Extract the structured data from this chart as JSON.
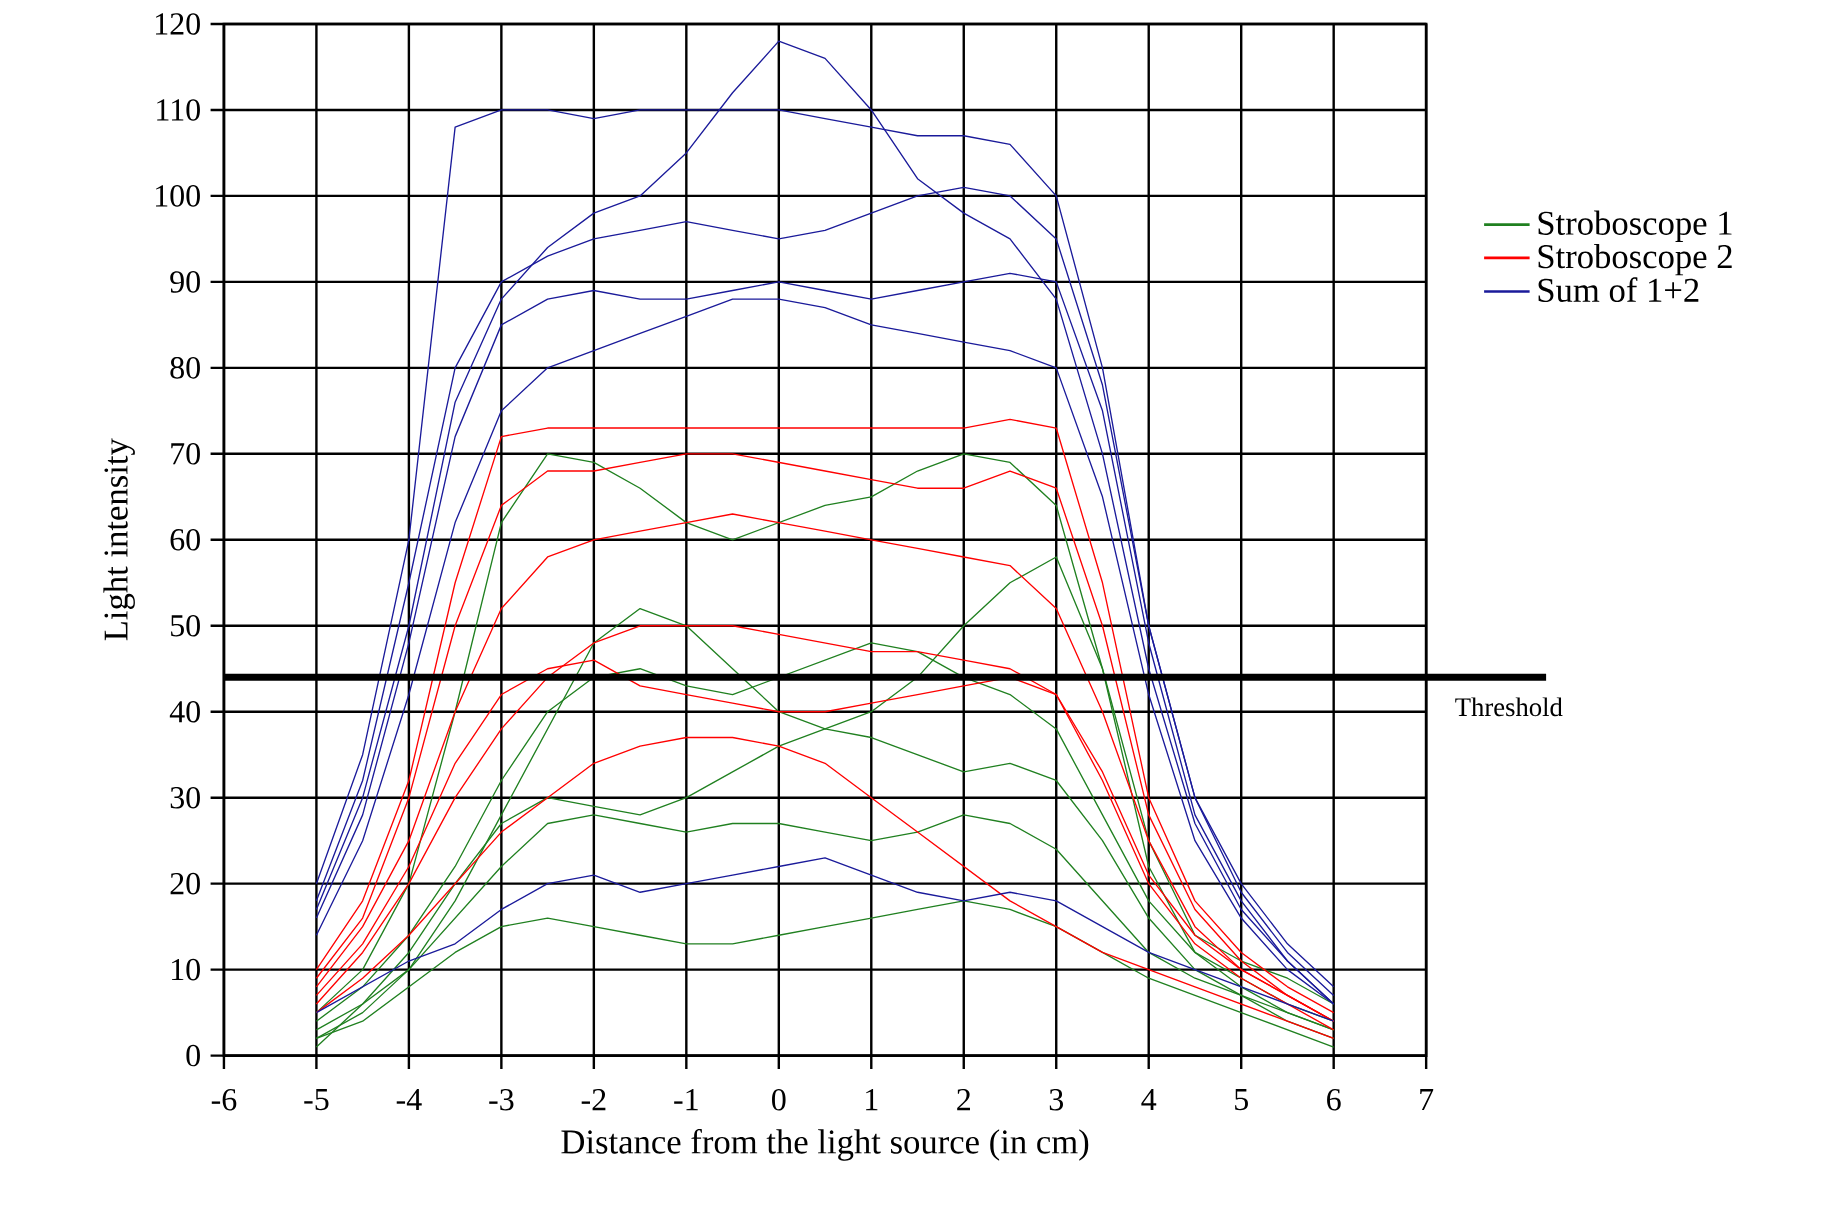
{
  "chart_data": {
    "type": "line",
    "xlabel": "Distance from the light source (in cm)",
    "ylabel": "Light intensity",
    "x": [
      -5,
      -4.5,
      -4,
      -3.5,
      -3,
      -2.5,
      -2,
      -1.5,
      -1,
      -0.5,
      0,
      0.5,
      1,
      1.5,
      2,
      2.5,
      3,
      3.5,
      4,
      4.5,
      5,
      5.5,
      6
    ],
    "xlim": [
      -6,
      7
    ],
    "xticks": [
      -6,
      -5,
      -4,
      -3,
      -2,
      -1,
      0,
      1,
      2,
      3,
      4,
      5,
      6,
      7
    ],
    "ylim": [
      0,
      120
    ],
    "yticks": [
      0,
      10,
      20,
      30,
      40,
      50,
      60,
      70,
      80,
      90,
      100,
      110,
      120
    ],
    "grid": true,
    "legend": "right",
    "ref_lines": [
      {
        "axis": "y",
        "value": 44,
        "label": "Threshold",
        "color": "#000000"
      }
    ],
    "series": [
      {
        "name": "Stroboscope 1",
        "color": "#208020",
        "values": [
          2,
          4,
          8,
          12,
          15,
          16,
          15,
          14,
          13,
          13,
          14,
          15,
          16,
          17,
          18,
          17,
          15,
          12,
          9,
          7,
          5,
          3,
          1
        ]
      },
      {
        "color": "#208020",
        "values": [
          3,
          6,
          10,
          16,
          22,
          27,
          28,
          27,
          26,
          27,
          27,
          26,
          25,
          26,
          28,
          27,
          24,
          18,
          12,
          9,
          7,
          5,
          3
        ]
      },
      {
        "color": "#208020",
        "values": [
          4,
          8,
          14,
          22,
          32,
          40,
          44,
          45,
          43,
          42,
          44,
          46,
          48,
          47,
          44,
          42,
          38,
          28,
          18,
          12,
          9,
          6,
          4
        ]
      },
      {
        "color": "#208020",
        "values": [
          5,
          10,
          20,
          40,
          62,
          70,
          69,
          66,
          62,
          60,
          62,
          64,
          65,
          68,
          70,
          69,
          64,
          45,
          25,
          14,
          11,
          9,
          6
        ]
      },
      {
        "color": "#208020",
        "values": [
          1,
          6,
          12,
          20,
          27,
          30,
          29,
          28,
          30,
          33,
          36,
          38,
          37,
          35,
          33,
          34,
          32,
          25,
          16,
          10,
          7,
          4,
          2
        ]
      },
      {
        "color": "#208020",
        "values": [
          2,
          5,
          10,
          18,
          28,
          38,
          48,
          52,
          50,
          45,
          40,
          38,
          40,
          44,
          50,
          55,
          58,
          45,
          22,
          12,
          8,
          5,
          3
        ]
      },
      {
        "name": "Stroboscope 2",
        "color": "#ff0000",
        "values": [
          10,
          18,
          32,
          55,
          72,
          73,
          73,
          73,
          73,
          73,
          73,
          73,
          73,
          73,
          73,
          74,
          73,
          55,
          30,
          18,
          12,
          8,
          5
        ]
      },
      {
        "color": "#ff0000",
        "values": [
          8,
          15,
          25,
          40,
          52,
          58,
          60,
          61,
          62,
          63,
          62,
          61,
          60,
          59,
          58,
          57,
          52,
          40,
          25,
          15,
          10,
          7,
          4
        ]
      },
      {
        "color": "#ff0000",
        "values": [
          6,
          12,
          20,
          30,
          38,
          44,
          48,
          50,
          50,
          50,
          49,
          48,
          47,
          47,
          46,
          45,
          42,
          32,
          20,
          13,
          9,
          6,
          3
        ]
      },
      {
        "color": "#ff0000",
        "values": [
          5,
          9,
          14,
          20,
          26,
          30,
          34,
          36,
          37,
          37,
          36,
          34,
          30,
          26,
          22,
          18,
          15,
          12,
          10,
          8,
          6,
          4,
          2
        ]
      },
      {
        "color": "#ff0000",
        "values": [
          7,
          13,
          22,
          34,
          42,
          45,
          46,
          43,
          42,
          41,
          40,
          40,
          41,
          42,
          43,
          44,
          42,
          33,
          21,
          14,
          10,
          7,
          4
        ]
      },
      {
        "color": "#ff0000",
        "values": [
          9,
          16,
          30,
          50,
          64,
          68,
          68,
          69,
          70,
          70,
          69,
          68,
          67,
          66,
          66,
          68,
          66,
          50,
          28,
          17,
          11,
          7,
          4
        ]
      },
      {
        "name": "Sum of 1+2",
        "color": "#1a1a9a",
        "values": [
          20,
          35,
          60,
          108,
          110,
          110,
          109,
          110,
          110,
          110,
          110,
          109,
          108,
          107,
          107,
          106,
          100,
          80,
          50,
          30,
          20,
          13,
          8
        ]
      },
      {
        "color": "#1a1a9a",
        "values": [
          18,
          32,
          55,
          80,
          90,
          93,
          95,
          96,
          97,
          96,
          95,
          96,
          98,
          100,
          101,
          100,
          95,
          78,
          50,
          30,
          19,
          12,
          7
        ]
      },
      {
        "color": "#1a1a9a",
        "values": [
          16,
          28,
          48,
          72,
          85,
          88,
          89,
          88,
          88,
          89,
          90,
          89,
          88,
          89,
          90,
          91,
          90,
          75,
          48,
          28,
          18,
          11,
          6
        ]
      },
      {
        "color": "#1a1a9a",
        "values": [
          14,
          25,
          42,
          62,
          75,
          80,
          82,
          84,
          86,
          88,
          88,
          87,
          85,
          84,
          83,
          82,
          80,
          65,
          42,
          25,
          16,
          10,
          6
        ]
      },
      {
        "color": "#1a1a9a",
        "values": [
          5,
          8,
          11,
          13,
          17,
          20,
          21,
          19,
          20,
          21,
          22,
          23,
          21,
          19,
          18,
          19,
          18,
          15,
          12,
          10,
          8,
          6,
          4
        ]
      },
      {
        "color": "#1a1a9a",
        "values": [
          17,
          30,
          50,
          76,
          88,
          94,
          98,
          100,
          105,
          112,
          118,
          116,
          110,
          102,
          98,
          95,
          88,
          70,
          45,
          27,
          17,
          11,
          6
        ]
      }
    ]
  }
}
